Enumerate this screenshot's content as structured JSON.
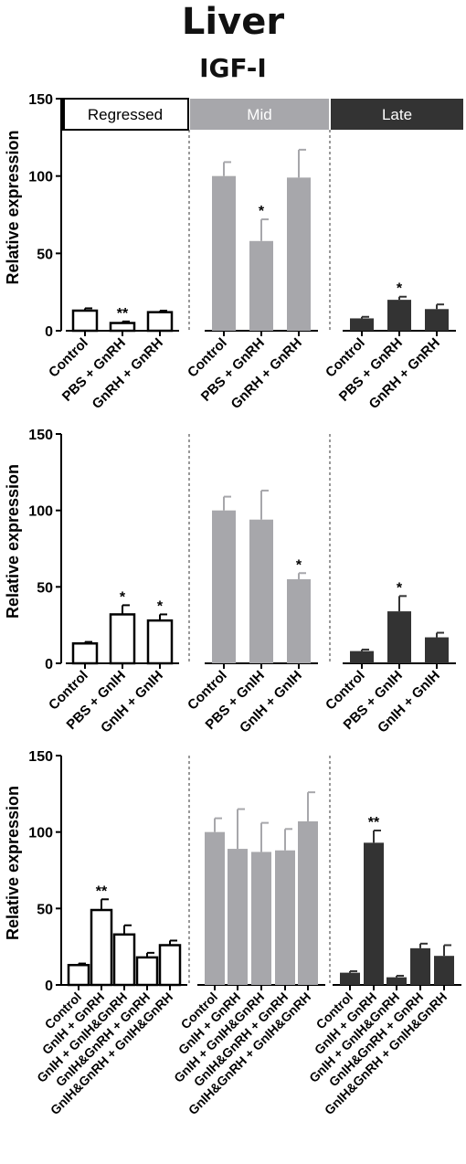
{
  "title": "Liver",
  "subtitle": "IGF-I",
  "phases": [
    {
      "label": "Regressed",
      "fill": "#ffffff"
    },
    {
      "label": "Mid",
      "fill": "#a7a7ab"
    },
    {
      "label": "Late",
      "fill": "#333333"
    }
  ],
  "chart_data": [
    {
      "type": "bar",
      "ylabel": "Relative expression",
      "ylim": [
        0,
        150
      ],
      "yticks": [
        0,
        50,
        100,
        150
      ],
      "groups": [
        {
          "name": "Regressed",
          "categories": [
            "Control",
            "PBS + GnRH",
            "GnRH + GnRH"
          ],
          "values": [
            13,
            5,
            12
          ],
          "errors": [
            1.5,
            1,
            1
          ],
          "significance": [
            "",
            "**",
            ""
          ]
        },
        {
          "name": "Mid",
          "categories": [
            "Control",
            "PBS + GnRH",
            "GnRH + GnRH"
          ],
          "values": [
            100,
            58,
            99
          ],
          "errors": [
            9,
            14,
            18
          ],
          "significance": [
            "",
            "*",
            ""
          ]
        },
        {
          "name": "Late",
          "categories": [
            "Control",
            "PBS + GnRH",
            "GnRH + GnRH"
          ],
          "values": [
            8,
            20,
            14
          ],
          "errors": [
            1,
            2,
            3
          ],
          "significance": [
            "",
            "*",
            ""
          ]
        }
      ]
    },
    {
      "type": "bar",
      "ylabel": "Relative expression",
      "ylim": [
        0,
        150
      ],
      "yticks": [
        0,
        50,
        100,
        150
      ],
      "groups": [
        {
          "name": "Regressed",
          "categories": [
            "Control",
            "PBS + GnIH",
            "GnIH + GnIH"
          ],
          "values": [
            13,
            32,
            28
          ],
          "errors": [
            1,
            6,
            4
          ],
          "significance": [
            "",
            "*",
            "*"
          ]
        },
        {
          "name": "Mid",
          "categories": [
            "Control",
            "PBS + GnIH",
            "GnIH + GnIH"
          ],
          "values": [
            100,
            94,
            55
          ],
          "errors": [
            9,
            19,
            4
          ],
          "significance": [
            "",
            "",
            "*"
          ]
        },
        {
          "name": "Late",
          "categories": [
            "Control",
            "PBS + GnIH",
            "GnIH + GnIH"
          ],
          "values": [
            8,
            34,
            17
          ],
          "errors": [
            1,
            10,
            3
          ],
          "significance": [
            "",
            "*",
            ""
          ]
        }
      ]
    },
    {
      "type": "bar",
      "ylabel": "Relative expression",
      "ylim": [
        0,
        150
      ],
      "yticks": [
        0,
        50,
        100,
        150
      ],
      "groups": [
        {
          "name": "Regressed",
          "categories": [
            "Control",
            "GnIH + GnRH",
            "GnIH + GnIH&GnRH",
            "GnIH&GnRH + GnRH",
            "GnIH&GnRH + GnIH&GnRH"
          ],
          "values": [
            13,
            49,
            33,
            18,
            26
          ],
          "errors": [
            1,
            7,
            6,
            3,
            3
          ],
          "significance": [
            "",
            "**",
            "",
            "",
            ""
          ]
        },
        {
          "name": "Mid",
          "categories": [
            "Control",
            "GnIH + GnRH",
            "GnIH + GnIH&GnRH",
            "GnIH&GnRH + GnRH",
            "GnIH&GnRH + GnIH&GnRH"
          ],
          "values": [
            100,
            89,
            87,
            88,
            107
          ],
          "errors": [
            9,
            26,
            19,
            14,
            19
          ],
          "significance": [
            "",
            "",
            "",
            "",
            ""
          ]
        },
        {
          "name": "Late",
          "categories": [
            "Control",
            "GnIH + GnRH",
            "GnIH + GnIH&GnRH",
            "GnIH&GnRH + GnRH",
            "GnIH&GnRH + GnIH&GnRH"
          ],
          "values": [
            8,
            93,
            5,
            24,
            19
          ],
          "errors": [
            1,
            8,
            1,
            3,
            7
          ],
          "significance": [
            "",
            "**",
            "",
            "",
            ""
          ]
        }
      ]
    }
  ]
}
